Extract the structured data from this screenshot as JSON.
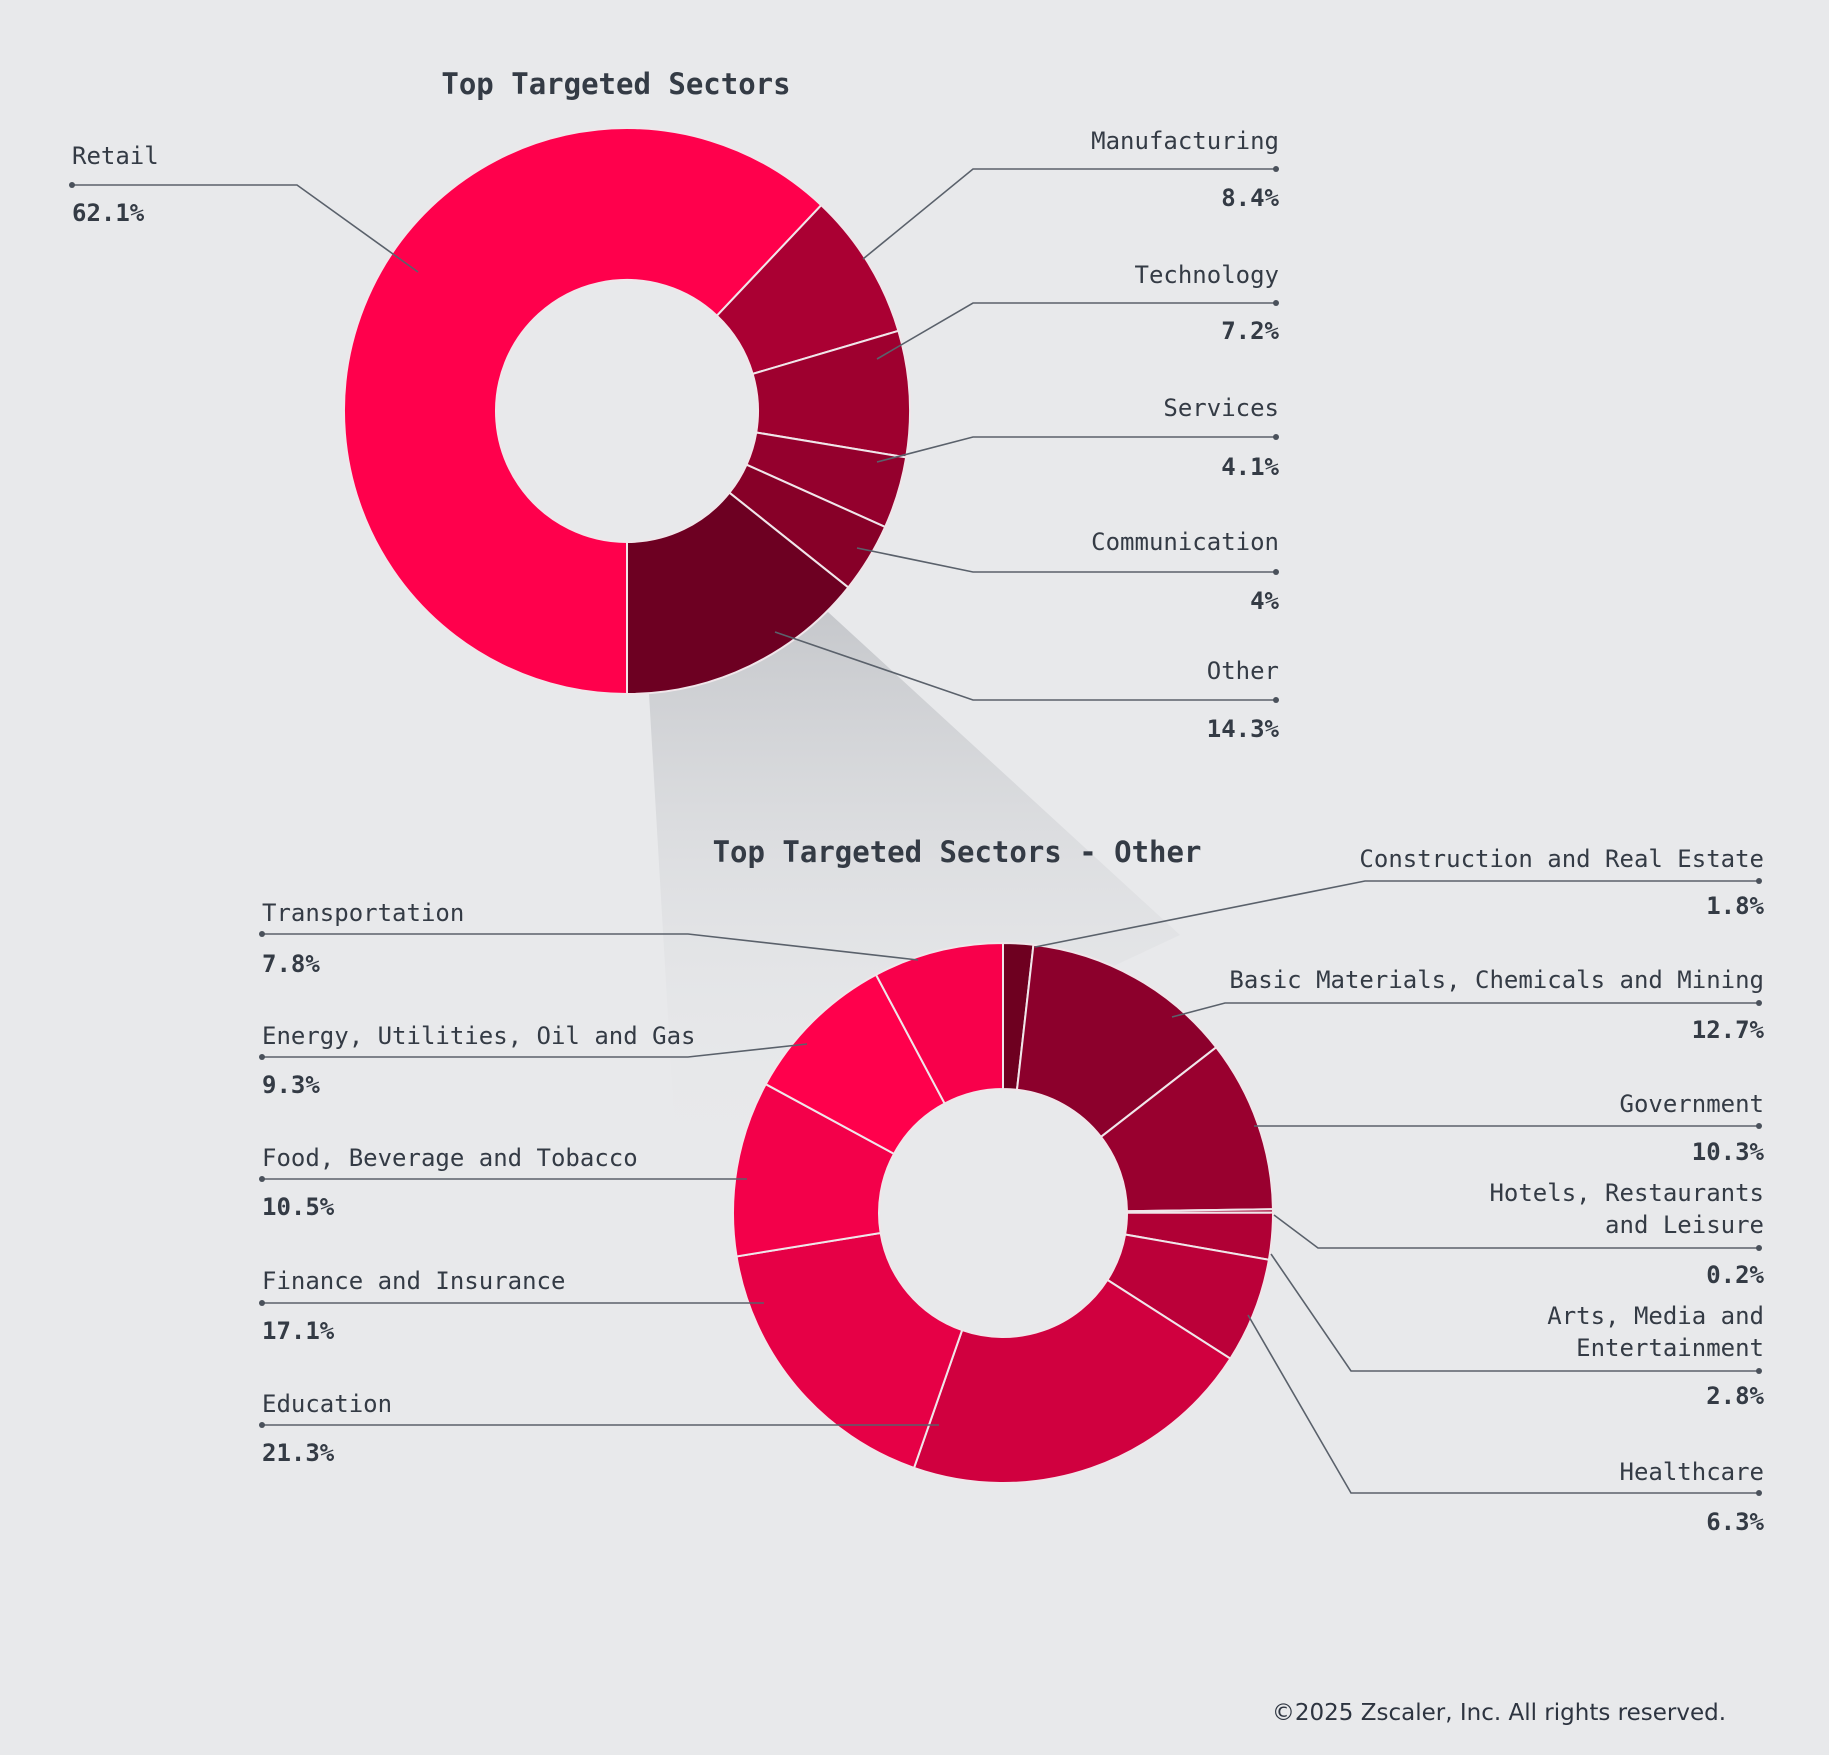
{
  "chart_data": [
    {
      "type": "pie",
      "subtype": "donut",
      "title": "Top Targeted Sectors",
      "categories": [
        "Retail",
        "Manufacturing",
        "Technology",
        "Services",
        "Communication",
        "Other"
      ],
      "values": [
        62.1,
        8.4,
        7.2,
        4.1,
        4,
        14.3
      ],
      "value_labels": [
        "62.1%",
        "8.4%",
        "7.2%",
        "4.1%",
        "4%",
        "14.3%"
      ],
      "colors": [
        "#ff004c",
        "#aa0033",
        "#9e002f",
        "#94002d",
        "#870028",
        "#6d0022"
      ]
    },
    {
      "type": "pie",
      "subtype": "donut",
      "title": "Top Targeted Sectors - Other",
      "categories": [
        "Construction and Real Estate",
        "Basic Materials, Chemicals and Mining",
        "Government",
        "Hotels, Restaurants and Leisure",
        "Arts, Media and Entertainment",
        "Healthcare",
        "Education",
        "Finance and Insurance",
        "Food, Beverage and Tobacco",
        "Energy, Utilities, Oil and Gas",
        "Transportation"
      ],
      "label_lines": [
        [
          "Construction and Real Estate"
        ],
        [
          "Basic Materials, Chemicals and Mining"
        ],
        [
          "Government"
        ],
        [
          "Hotels, Restaurants",
          "and Leisure"
        ],
        [
          "Arts, Media and ",
          "Entertainment"
        ],
        [
          "Healthcare"
        ],
        [
          "Education"
        ],
        [
          "Finance and Insurance"
        ],
        [
          "Food, Beverage and Tobacco"
        ],
        [
          "Energy, Utilities, Oil and Gas"
        ],
        [
          "Transportation"
        ]
      ],
      "values": [
        1.8,
        12.7,
        10.3,
        0.2,
        2.8,
        6.3,
        21.3,
        17.1,
        10.5,
        9.3,
        7.8
      ],
      "value_labels": [
        "1.8%",
        "12.7%",
        "10.3%",
        "0.2%",
        "2.8%",
        "6.3%",
        "21.3%",
        "17.1%",
        "10.5%",
        "9.3%",
        "7.8%"
      ],
      "colors": [
        "#6e0020",
        "#8c002c",
        "#99002f",
        "#a50031",
        "#b00035",
        "#bb0039",
        "#d0003f",
        "#e60046",
        "#f3004a",
        "#ff004c",
        "#f8004b"
      ]
    }
  ],
  "footer": {
    "copyright": "©2025 Zscaler, Inc. All rights reserved."
  }
}
